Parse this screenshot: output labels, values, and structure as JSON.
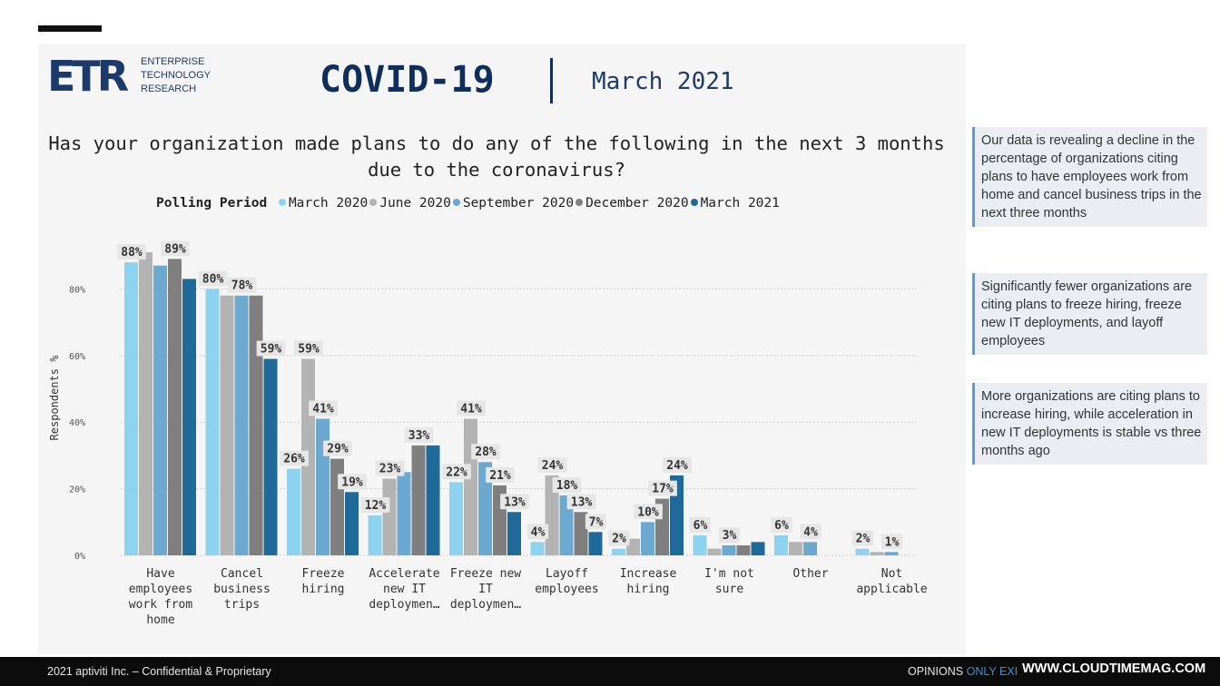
{
  "logo": {
    "mark": "ETR",
    "lines": [
      "ENTERPRISE",
      "TECHNOLOGY",
      "RESEARCH"
    ]
  },
  "headline": {
    "title": "COVID-19",
    "date": "March 2021"
  },
  "question": "Has your organization made plans to do any of the following in the next 3 months due to the coronavirus?",
  "legend": {
    "title": "Polling Period"
  },
  "colors": {
    "panel": "#f5f5f5",
    "brand": "#1d3b6a",
    "note_bar": "#5b9bd5"
  },
  "chart_data": {
    "type": "bar",
    "title": "Has your organization made plans to do any of the following in the next 3 months due to the coronavirus?",
    "xlabel": "",
    "ylabel": "Respondents %",
    "ylim": [
      0,
      100
    ],
    "yticks": [
      0,
      20,
      40,
      60,
      80
    ],
    "ytick_labels": [
      "0%",
      "20%",
      "40%",
      "60%",
      "80%"
    ],
    "categories": [
      [
        "Have",
        "employees",
        "work from",
        "home"
      ],
      [
        "Cancel",
        "business",
        "trips"
      ],
      [
        "Freeze",
        "hiring"
      ],
      [
        "Accelerate",
        "new IT",
        "deploymen…"
      ],
      [
        "Freeze new",
        "IT",
        "deploymen…"
      ],
      [
        "Layoff",
        "employees"
      ],
      [
        "Increase",
        "hiring"
      ],
      [
        "I'm not",
        "sure"
      ],
      [
        "Other"
      ],
      [
        "Not",
        "applicable"
      ]
    ],
    "series": [
      {
        "name": "March 2020",
        "color": "#8dd3ef",
        "values": [
          88,
          80,
          26,
          12,
          22,
          4,
          2,
          6,
          6,
          2
        ]
      },
      {
        "name": "June 2020",
        "color": "#b3b3b3",
        "values": [
          91,
          78,
          59,
          23,
          41,
          24,
          5,
          2,
          4,
          1
        ]
      },
      {
        "name": "September 2020",
        "color": "#6ba9d1",
        "values": [
          87,
          78,
          41,
          25,
          28,
          18,
          10,
          3,
          4,
          1
        ]
      },
      {
        "name": "December 2020",
        "color": "#7f7f7f",
        "values": [
          89,
          78,
          29,
          33,
          21,
          13,
          17,
          3,
          0,
          0
        ]
      },
      {
        "name": "March 2021",
        "color": "#1f6a99",
        "values": [
          83,
          59,
          19,
          33,
          13,
          7,
          24,
          4,
          0,
          0
        ]
      }
    ],
    "data_labels": [
      {
        "category": 0,
        "series": 0,
        "text": "88%"
      },
      {
        "category": 0,
        "series": 3,
        "text": "89%"
      },
      {
        "category": 1,
        "series": 0,
        "text": "80%"
      },
      {
        "category": 1,
        "series": 2,
        "text": "78%"
      },
      {
        "category": 1,
        "series": 4,
        "text": "59%"
      },
      {
        "category": 2,
        "series": 0,
        "text": "26%"
      },
      {
        "category": 2,
        "series": 1,
        "text": "59%"
      },
      {
        "category": 2,
        "series": 2,
        "text": "41%"
      },
      {
        "category": 2,
        "series": 3,
        "text": "29%"
      },
      {
        "category": 2,
        "series": 4,
        "text": "19%"
      },
      {
        "category": 3,
        "series": 0,
        "text": "12%"
      },
      {
        "category": 3,
        "series": 1,
        "text": "23%"
      },
      {
        "category": 3,
        "series": 3,
        "text": "33%"
      },
      {
        "category": 4,
        "series": 0,
        "text": "22%"
      },
      {
        "category": 4,
        "series": 1,
        "text": "41%"
      },
      {
        "category": 4,
        "series": 2,
        "text": "28%"
      },
      {
        "category": 4,
        "series": 3,
        "text": "21%"
      },
      {
        "category": 4,
        "series": 4,
        "text": "13%"
      },
      {
        "category": 5,
        "series": 0,
        "text": "4%"
      },
      {
        "category": 5,
        "series": 1,
        "text": "24%"
      },
      {
        "category": 5,
        "series": 2,
        "text": "18%"
      },
      {
        "category": 5,
        "series": 3,
        "text": "13%"
      },
      {
        "category": 5,
        "series": 4,
        "text": "7%"
      },
      {
        "category": 6,
        "series": 0,
        "text": "2%"
      },
      {
        "category": 6,
        "series": 2,
        "text": "10%"
      },
      {
        "category": 6,
        "series": 3,
        "text": "17%"
      },
      {
        "category": 6,
        "series": 4,
        "text": "24%"
      },
      {
        "category": 7,
        "series": 0,
        "text": "6%"
      },
      {
        "category": 7,
        "series": 2,
        "text": "3%"
      },
      {
        "category": 8,
        "series": 0,
        "text": "6%"
      },
      {
        "category": 8,
        "series": 2,
        "text": "4%"
      },
      {
        "category": 9,
        "series": 0,
        "text": "2%"
      },
      {
        "category": 9,
        "series": 2,
        "text": "1%"
      }
    ],
    "grid": true,
    "legend_position": "top"
  },
  "side_notes": [
    "Our data is revealing a decline in the percentage of organizations citing plans to have employees work from home and cancel business trips in the next three months",
    "Significantly fewer organizations are citing plans to freeze hiring, freeze new IT deployments, and layoff employees",
    "More organizations are citing plans to increase hiring, while acceleration in new IT deployments is stable vs three months ago"
  ],
  "footer": {
    "left": "2021 aptiviti Inc. – Confidential & Proprietary",
    "right_prefix": "OPINIONS ",
    "right_highlight": "ONLY EXI",
    "watermark": "WWW.CLOUDTIMEMAG.COM"
  }
}
